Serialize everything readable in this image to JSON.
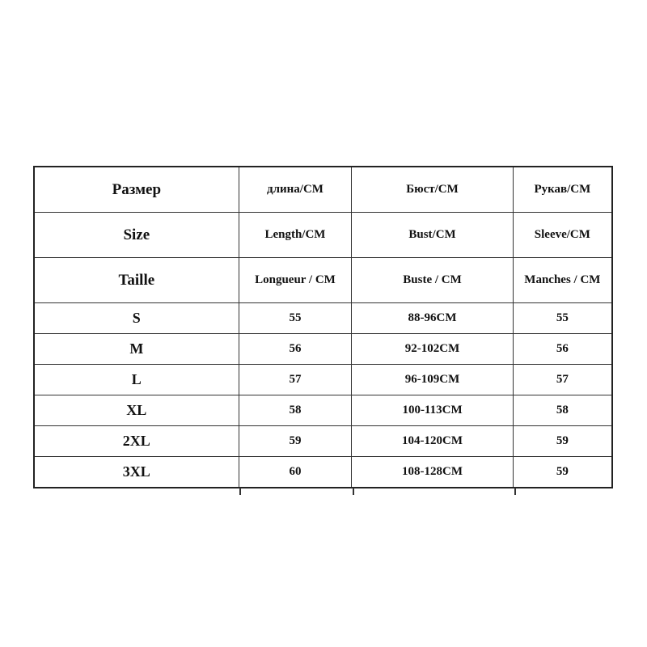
{
  "headers": [
    [
      "Размер",
      "длина/CM",
      "Бюст/CM",
      "Рукав/CM"
    ],
    [
      "Size",
      "Length/CM",
      "Bust/CM",
      "Sleeve/CM"
    ],
    [
      "Taille",
      "Longueur / CM",
      "Buste / CM",
      "Manches / CM"
    ]
  ],
  "rows": [
    [
      "S",
      "55",
      "88-96CM",
      "55"
    ],
    [
      "M",
      "56",
      "92-102CM",
      "56"
    ],
    [
      "L",
      "57",
      "96-109CM",
      "57"
    ],
    [
      "XL",
      "58",
      "100-113CM",
      "58"
    ],
    [
      "2XL",
      "59",
      "104-120CM",
      "59"
    ],
    [
      "3XL",
      "60",
      "108-128CM",
      "59"
    ]
  ]
}
